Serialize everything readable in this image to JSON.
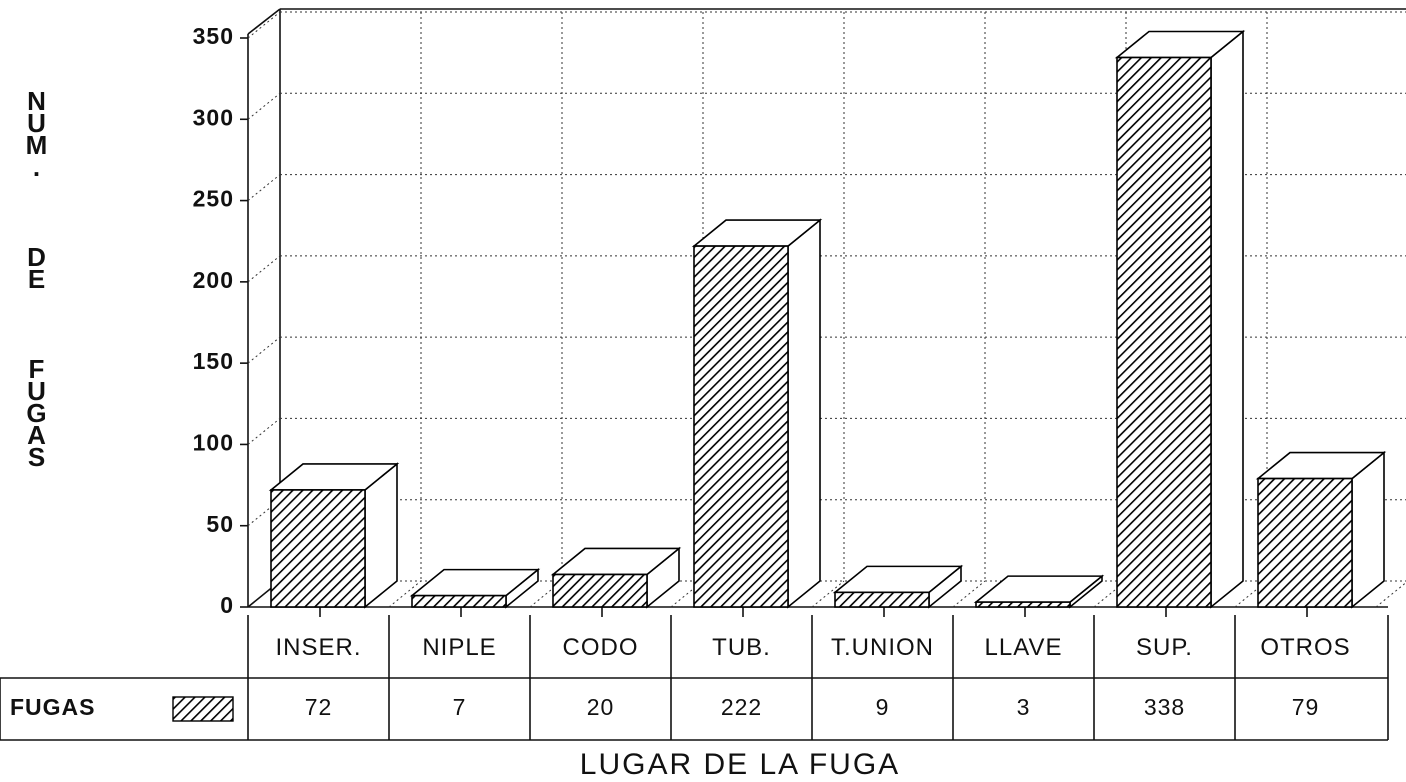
{
  "chart_data": {
    "type": "bar3d",
    "y_label": "NUM. DE FUGAS",
    "x_label": "LUGAR DE LA FUGA",
    "categories": [
      "INSER.",
      "NIPLE",
      "CODO",
      "TUB.",
      "T.UNION",
      "LLAVE",
      "SUP.",
      "OTROS"
    ],
    "series": [
      {
        "name": "FUGAS",
        "color": "#000000",
        "values": [
          72,
          7,
          20,
          222,
          9,
          3,
          338,
          79
        ]
      }
    ],
    "ylim": [
      0,
      350
    ],
    "yticks": [
      0,
      50,
      100,
      150,
      200,
      250,
      300,
      350
    ],
    "grid": true
  }
}
